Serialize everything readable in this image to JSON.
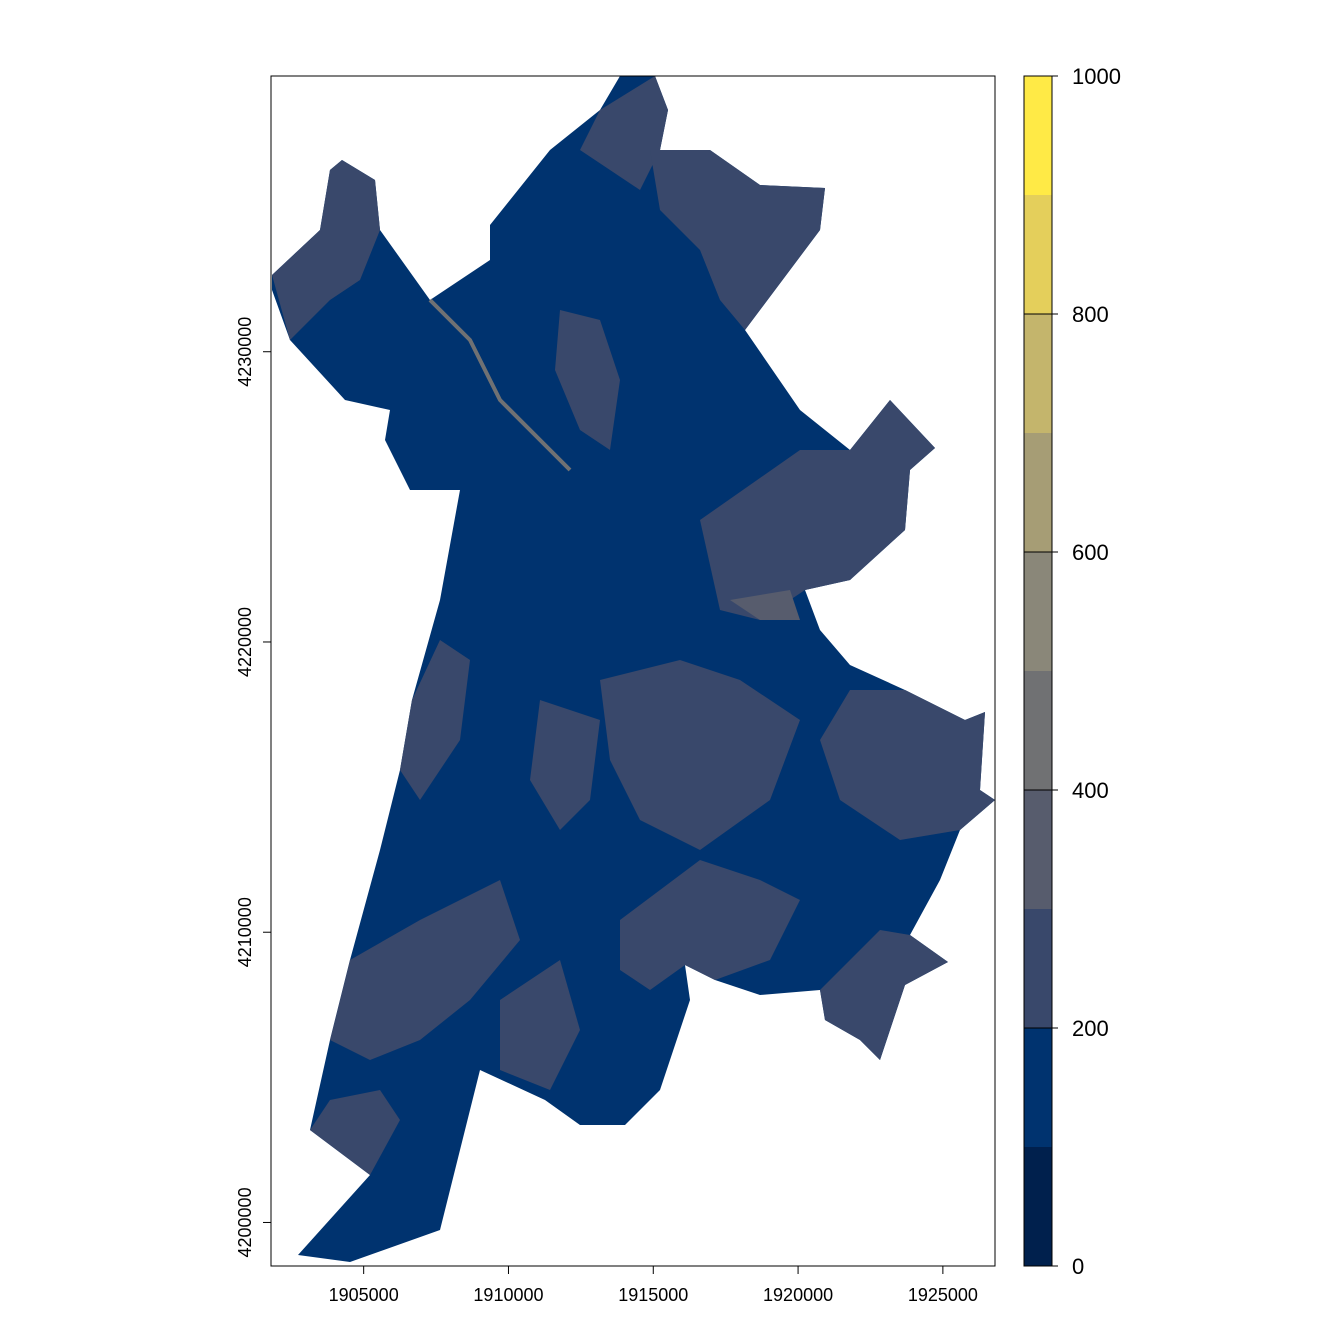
{
  "map": {
    "x_axis": {
      "ticks": [
        1905000,
        1910000,
        1915000,
        1920000,
        1925000
      ],
      "range": [
        1901800,
        1926800
      ]
    },
    "y_axis": {
      "ticks": [
        4200000,
        4210000,
        4220000,
        4230000
      ],
      "range": [
        4198500,
        4239500
      ]
    },
    "fill_colors": {
      "main": "#00336F",
      "patch": "#39486B",
      "light_patch": "#575C6D",
      "streak": "#707173"
    }
  },
  "legend": {
    "breaks": [
      0,
      100,
      200,
      300,
      400,
      500,
      600,
      700,
      800,
      900,
      1000
    ],
    "labels": [
      "0",
      "200",
      "400",
      "600",
      "800",
      "1000"
    ],
    "colors": [
      "#00204D",
      "#00336F",
      "#39486B",
      "#575C6D",
      "#707173",
      "#8A8779",
      "#A69D75",
      "#C4B56C",
      "#E4CF5B",
      "#FFEA46"
    ]
  }
}
